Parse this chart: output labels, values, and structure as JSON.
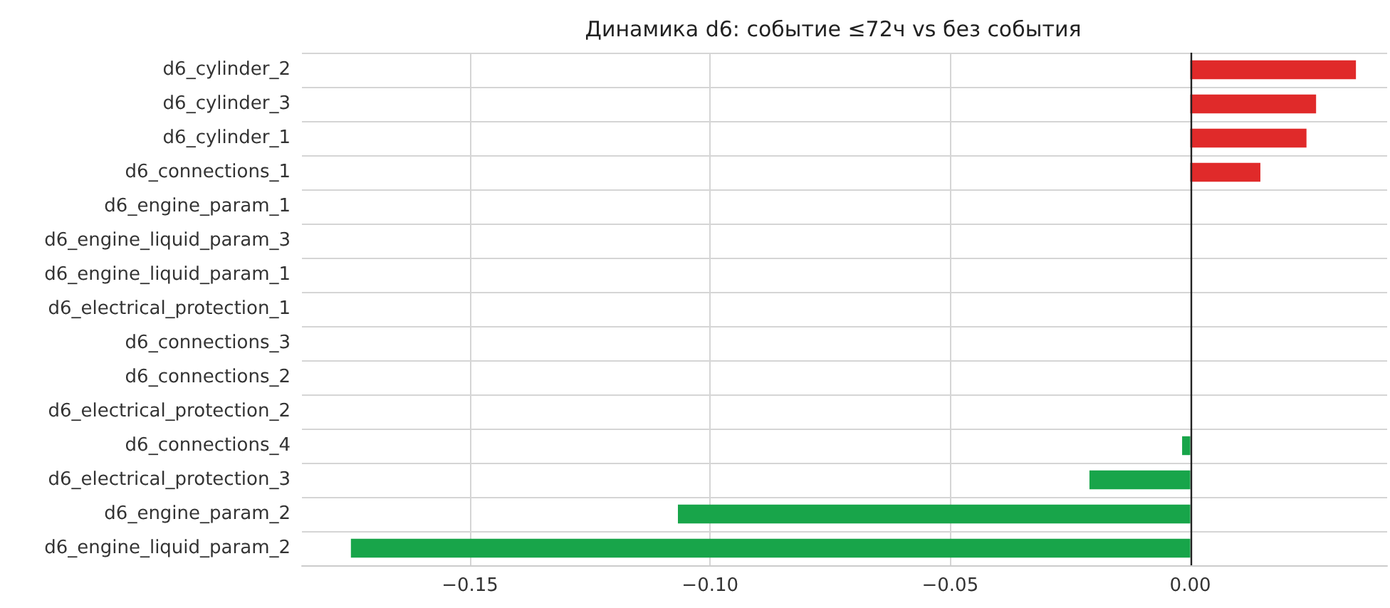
{
  "chart_data": {
    "type": "bar",
    "orientation": "horizontal",
    "title": "Динамика d6: событие ≤72ч vs без события",
    "categories": [
      "d6_cylinder_2",
      "d6_cylinder_3",
      "d6_cylinder_1",
      "d6_connections_1",
      "d6_engine_param_1",
      "d6_engine_liquid_param_3",
      "d6_engine_liquid_param_1",
      "d6_electrical_protection_1",
      "d6_connections_3",
      "d6_connections_2",
      "d6_electrical_protection_2",
      "d6_connections_4",
      "d6_electrical_protection_3",
      "d6_engine_param_2",
      "d6_engine_liquid_param_2"
    ],
    "values": [
      0.0345,
      0.0262,
      0.0242,
      0.0146,
      0,
      0,
      0,
      0,
      0,
      0,
      0,
      -0.0017,
      -0.021,
      -0.1067,
      -0.1748
    ],
    "colors": [
      "#e02a2a",
      "#e02a2a",
      "#e02a2a",
      "#e02a2a",
      "#e02a2a",
      "#e02a2a",
      "#e02a2a",
      "#e02a2a",
      "#e02a2a",
      "#e02a2a",
      "#e02a2a",
      "#18a54a",
      "#18a54a",
      "#18a54a",
      "#18a54a"
    ],
    "xlim": [
      -0.185,
      0.041
    ],
    "xticks": [
      {
        "value": -0.15,
        "label": "−0.15"
      },
      {
        "value": -0.1,
        "label": "−0.10"
      },
      {
        "value": -0.05,
        "label": "−0.05"
      },
      {
        "value": 0,
        "label": "0.00"
      }
    ],
    "ref_lines": [
      {
        "axis": "x",
        "value": 0,
        "color": "#222222"
      }
    ],
    "grid": true
  }
}
